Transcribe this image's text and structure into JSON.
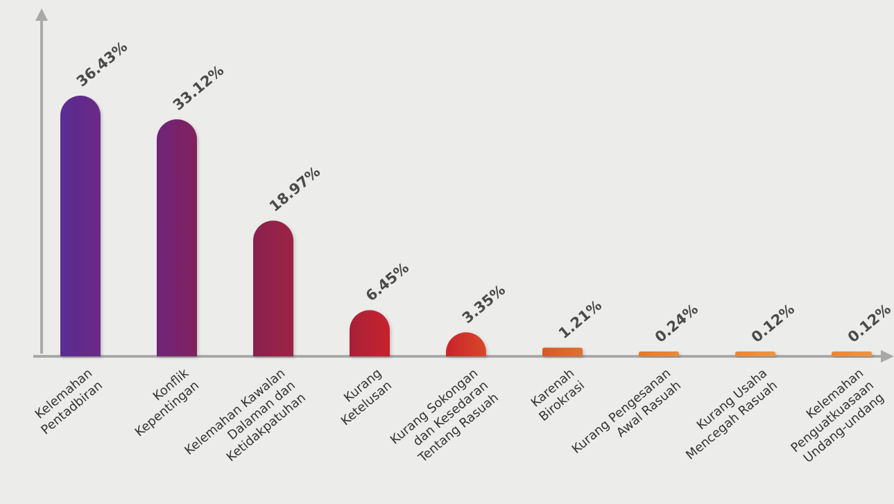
{
  "chart_data": {
    "type": "bar",
    "categories": [
      [
        "Kelemahan",
        "Pentadbiran"
      ],
      [
        "Konflik",
        "Kepentingan"
      ],
      [
        "Kelemahan Kawalan",
        "Dalaman dan",
        "Ketidakpatuhan"
      ],
      [
        "Kurang",
        "Ketelusan"
      ],
      [
        "Kurang Sokongan",
        "dan Kesedaran",
        "Tentang Rasuah"
      ],
      [
        "Karenah",
        "Birokrasi"
      ],
      [
        "Kurang Pengesanan",
        "Awal Rasuah"
      ],
      [
        "Kurang Usaha",
        "Mencegah Rasuah"
      ],
      [
        "Kelemahan",
        "Penguatkuasaan",
        "Undang-undang"
      ]
    ],
    "values": [
      36.43,
      33.12,
      18.97,
      6.45,
      3.35,
      1.21,
      0.24,
      0.12,
      0.12
    ],
    "data_labels": [
      "36.43%",
      "33.12%",
      "18.97%",
      "6.45%",
      "3.35%",
      "1.21%",
      "0.24%",
      "0.12%",
      "0.12%"
    ],
    "colors": [
      [
        "#5a2d91",
        "#6b2a86"
      ],
      [
        "#6e2578",
        "#82235f"
      ],
      [
        "#88204f",
        "#9e2045"
      ],
      [
        "#a81f3a",
        "#c8242c"
      ],
      [
        "#c8242c",
        "#d8482a"
      ],
      [
        "#d45a2a",
        "#e07030"
      ],
      [
        "#e07a2f",
        "#ea8a3a"
      ],
      [
        "#e8863a",
        "#ee9442"
      ],
      [
        "#e8863a",
        "#ee9442"
      ]
    ],
    "axis_color": "#a9a9a9",
    "label_color": "#4a4a4a",
    "ylim": [
      0,
      40
    ],
    "grid": false
  }
}
